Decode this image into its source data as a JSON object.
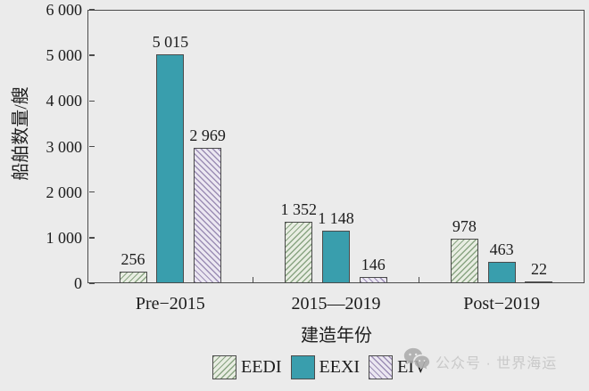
{
  "chart_data": {
    "type": "bar",
    "xlabel": "建造年份",
    "ylabel": "船舶数量/艘",
    "ylim": [
      0,
      6000
    ],
    "grid": false,
    "legend_position": "bottom",
    "axis_color": "#4b4b4b",
    "bar_border_color": "#4b4b4b",
    "yticks": [
      {
        "value": 0,
        "label": "0"
      },
      {
        "value": 1000,
        "label": "1 000"
      },
      {
        "value": 2000,
        "label": "2 000"
      },
      {
        "value": 3000,
        "label": "3 000"
      },
      {
        "value": 4000,
        "label": "4 000"
      },
      {
        "value": 5000,
        "label": "5 000"
      },
      {
        "value": 6000,
        "label": "6 000"
      }
    ],
    "categories": [
      "Pre−2015",
      "2015—2019",
      "Post−2019"
    ],
    "series": [
      {
        "name": "EEDI",
        "values": [
          256,
          1352,
          978
        ],
        "value_labels": [
          "256",
          "1 352",
          "978"
        ],
        "fill": "#e8ede2",
        "hatch_color": "#8aa583",
        "hatch": "forward-diagonal"
      },
      {
        "name": "EEXI",
        "values": [
          5015,
          1148,
          463
        ],
        "value_labels": [
          "5 015",
          "1 148",
          "463"
        ],
        "fill": "#399ead",
        "hatch_color": null,
        "hatch": "none"
      },
      {
        "name": "EIV",
        "values": [
          2969,
          146,
          22
        ],
        "value_labels": [
          "2 969",
          "146",
          "22"
        ],
        "fill": "#ebe7f1",
        "hatch_color": "#9c8eb5",
        "hatch": "backward-diagonal"
      }
    ]
  },
  "watermark": {
    "icon": "wechat-icon",
    "text": "公众号 · 世界海运"
  }
}
